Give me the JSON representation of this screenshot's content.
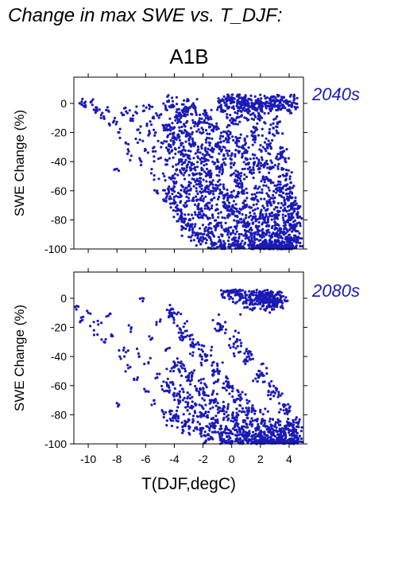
{
  "heading": "Change in max SWE vs. T_DJF:",
  "scenario": "A1B",
  "colors": {
    "points": "#1a1ab8",
    "period_label": "#1a1ab8",
    "axis": "#000000"
  },
  "chart_data": [
    {
      "type": "scatter",
      "period_label": "2040s",
      "ylabel": "SWE Change (%)",
      "xlabel": "",
      "xlim": [
        -11,
        5
      ],
      "ylim": [
        -100,
        18
      ],
      "x_ticks": [
        -10,
        -8,
        -6,
        -4,
        -2,
        0,
        2,
        4
      ],
      "y_ticks": [
        0,
        -20,
        -40,
        -60,
        -80,
        -100
      ],
      "x_tick_labels_shown": false,
      "points": [
        [
          -10.6,
          0
        ],
        [
          -10.3,
          -2
        ],
        [
          -10.2,
          1
        ],
        [
          -9.8,
          1
        ],
        [
          -9.5,
          -5
        ],
        [
          -9.4,
          -3
        ],
        [
          -9.1,
          -8
        ],
        [
          -8.9,
          -10
        ],
        [
          -8.6,
          -5
        ],
        [
          -8.5,
          -15
        ],
        [
          -8.2,
          -12
        ],
        [
          -8.0,
          -45
        ],
        [
          -7.9,
          -20
        ],
        [
          -7.6,
          -8
        ],
        [
          -7.4,
          -3
        ],
        [
          -7.2,
          -28
        ],
        [
          -7.0,
          -36
        ],
        [
          -6.9,
          -12
        ],
        [
          -6.7,
          -6
        ],
        [
          -6.5,
          -18
        ],
        [
          -6.4,
          -25
        ],
        [
          -6.3,
          -40
        ],
        [
          -6.1,
          -5
        ],
        [
          -6.0,
          -32
        ],
        [
          -5.9,
          -14
        ],
        [
          -5.8,
          -22
        ],
        [
          -5.7,
          -2
        ],
        [
          -5.6,
          -48
        ],
        [
          -5.5,
          -10
        ],
        [
          -5.4,
          -30
        ],
        [
          -5.3,
          -20
        ],
        [
          -5.2,
          -60
        ],
        [
          -5.1,
          -38
        ],
        [
          -5.0,
          -8
        ],
        [
          -4.9,
          -27
        ],
        [
          -4.8,
          -15
        ],
        [
          -4.7,
          -50
        ],
        [
          -4.6,
          -3
        ],
        [
          -4.5,
          -42
        ],
        [
          -4.4,
          -18
        ],
        [
          -4.3,
          -64
        ],
        [
          -4.2,
          -33
        ],
        [
          -4.1,
          -1
        ],
        [
          -4.0,
          -55
        ],
        [
          -3.9,
          -24
        ],
        [
          -3.8,
          -70
        ],
        [
          -3.7,
          -12
        ],
        [
          -3.6,
          -46
        ],
        [
          -3.5,
          -80
        ],
        [
          -3.4,
          -6
        ],
        [
          -3.3,
          -36
        ],
        [
          -3.2,
          -58
        ],
        [
          -3.1,
          -20
        ],
        [
          -3.0,
          -84
        ],
        [
          -2.9,
          -44
        ],
        [
          -2.8,
          -2
        ],
        [
          -2.7,
          -66
        ],
        [
          -2.6,
          -28
        ],
        [
          -2.5,
          -90
        ],
        [
          -2.4,
          -52
        ],
        [
          -2.3,
          -14
        ],
        [
          -2.2,
          -76
        ],
        [
          -2.1,
          -40
        ],
        [
          -2.0,
          -92
        ],
        [
          -1.9,
          -60
        ],
        [
          -1.8,
          -8
        ],
        [
          -1.7,
          -34
        ],
        [
          -1.6,
          -86
        ],
        [
          -1.5,
          -48
        ],
        [
          -1.4,
          -72
        ],
        [
          -1.3,
          -18
        ],
        [
          -1.2,
          -96
        ],
        [
          -1.1,
          -56
        ],
        [
          -1.0,
          -30
        ],
        [
          -0.9,
          -82
        ],
        [
          -0.8,
          -44
        ],
        [
          -0.7,
          -4
        ],
        [
          -0.6,
          -68
        ],
        [
          -0.5,
          -98
        ],
        [
          -0.4,
          -24
        ],
        [
          -0.3,
          -62
        ],
        [
          -0.2,
          -88
        ],
        [
          -0.1,
          -38
        ],
        [
          0.0,
          -74
        ],
        [
          0.1,
          -12
        ],
        [
          0.2,
          -94
        ],
        [
          0.3,
          -50
        ],
        [
          0.4,
          -78
        ],
        [
          0.5,
          -26
        ],
        [
          0.6,
          -99
        ],
        [
          0.7,
          -58
        ],
        [
          0.8,
          -84
        ],
        [
          0.9,
          -34
        ],
        [
          1.0,
          -70
        ],
        [
          1.1,
          -6
        ],
        [
          1.2,
          -92
        ],
        [
          1.3,
          -46
        ],
        [
          1.4,
          -80
        ],
        [
          1.5,
          -20
        ],
        [
          1.6,
          -99
        ],
        [
          1.7,
          -64
        ],
        [
          1.8,
          -88
        ],
        [
          1.9,
          -40
        ],
        [
          2.0,
          -76
        ],
        [
          2.1,
          -10
        ],
        [
          2.2,
          -96
        ],
        [
          2.3,
          -54
        ],
        [
          2.4,
          -82
        ],
        [
          2.5,
          -30
        ],
        [
          2.6,
          -99
        ],
        [
          2.7,
          -68
        ],
        [
          2.8,
          -90
        ],
        [
          2.9,
          -44
        ],
        [
          3.0,
          -78
        ],
        [
          3.1,
          -16
        ],
        [
          3.2,
          -94
        ],
        [
          3.3,
          -58
        ],
        [
          3.4,
          -86
        ],
        [
          3.5,
          -36
        ],
        [
          3.6,
          -98
        ],
        [
          3.7,
          -72
        ],
        [
          3.8,
          -52
        ],
        [
          3.9,
          -88
        ],
        [
          4.0,
          -62
        ],
        [
          4.1,
          -80
        ],
        [
          4.2,
          -96
        ],
        [
          4.3,
          -70
        ],
        [
          4.4,
          -84
        ],
        [
          4.5,
          -92
        ],
        [
          4.6,
          -76
        ],
        [
          1.0,
          0
        ],
        [
          1.4,
          0
        ],
        [
          1.8,
          0
        ],
        [
          2.2,
          0
        ],
        [
          2.6,
          0
        ],
        [
          3.0,
          0
        ],
        [
          3.4,
          0
        ],
        [
          3.8,
          0
        ],
        [
          4.2,
          0
        ],
        [
          0.4,
          2
        ],
        [
          0.0,
          4
        ],
        [
          -0.4,
          3
        ],
        [
          0.8,
          1
        ],
        [
          2.0,
          -100
        ],
        [
          2.6,
          -100
        ],
        [
          3.2,
          -100
        ],
        [
          3.8,
          -100
        ],
        [
          2.9,
          -100
        ],
        [
          3.5,
          -100
        ],
        [
          4.0,
          -99
        ]
      ]
    },
    {
      "type": "scatter",
      "period_label": "2080s",
      "ylabel": "SWE Change (%)",
      "xlabel": "T(DJF,degC)",
      "xlim": [
        -11,
        5
      ],
      "ylim": [
        -100,
        18
      ],
      "x_ticks": [
        -10,
        -8,
        -6,
        -4,
        -2,
        0,
        2,
        4
      ],
      "y_ticks": [
        0,
        -20,
        -40,
        -60,
        -80,
        -100
      ],
      "x_tick_labels_shown": true,
      "points": [
        [
          -10.9,
          -6
        ],
        [
          -10.4,
          -15
        ],
        [
          -10.0,
          -10
        ],
        [
          -9.6,
          -22
        ],
        [
          -9.3,
          -18
        ],
        [
          -8.9,
          -30
        ],
        [
          -8.6,
          -12
        ],
        [
          -8.3,
          -26
        ],
        [
          -8.0,
          -72
        ],
        [
          -7.8,
          -40
        ],
        [
          -7.5,
          -34
        ],
        [
          -7.2,
          -48
        ],
        [
          -7.0,
          -20
        ],
        [
          -6.8,
          -56
        ],
        [
          -6.5,
          -38
        ],
        [
          -6.2,
          -2
        ],
        [
          -6.0,
          -64
        ],
        [
          -5.8,
          -44
        ],
        [
          -5.6,
          -28
        ],
        [
          -5.4,
          -70
        ],
        [
          -5.2,
          -52
        ],
        [
          -5.0,
          -16
        ],
        [
          -4.8,
          -78
        ],
        [
          -4.6,
          -36
        ],
        [
          -4.4,
          -60
        ],
        [
          -4.2,
          -10
        ],
        [
          -4.0,
          -82
        ],
        [
          -3.8,
          -46
        ],
        [
          -3.6,
          -68
        ],
        [
          -3.4,
          -24
        ],
        [
          -3.2,
          -86
        ],
        [
          -3.0,
          -54
        ],
        [
          -2.8,
          -74
        ],
        [
          -2.6,
          -32
        ],
        [
          -2.4,
          -90
        ],
        [
          -2.2,
          -62
        ],
        [
          -2.0,
          -80
        ],
        [
          -1.8,
          -40
        ],
        [
          -1.6,
          -94
        ],
        [
          -1.4,
          -70
        ],
        [
          -1.2,
          -86
        ],
        [
          -1.0,
          -50
        ],
        [
          -0.8,
          -96
        ],
        [
          -0.6,
          -76
        ],
        [
          -0.4,
          -88
        ],
        [
          -0.2,
          -60
        ],
        [
          0.0,
          -98
        ],
        [
          0.2,
          -82
        ],
        [
          0.4,
          -92
        ],
        [
          0.6,
          -70
        ],
        [
          0.8,
          -99
        ],
        [
          1.0,
          -86
        ],
        [
          1.2,
          -94
        ],
        [
          1.4,
          -78
        ],
        [
          1.6,
          -99
        ],
        [
          1.8,
          -90
        ],
        [
          2.0,
          -96
        ],
        [
          2.2,
          -84
        ],
        [
          2.4,
          -99
        ],
        [
          2.6,
          -92
        ],
        [
          2.8,
          -98
        ],
        [
          3.0,
          -88
        ],
        [
          3.2,
          -99
        ],
        [
          3.4,
          -94
        ],
        [
          3.6,
          -98
        ],
        [
          3.8,
          -90
        ],
        [
          4.0,
          -99
        ],
        [
          4.2,
          -94
        ],
        [
          4.4,
          -98
        ],
        [
          4.6,
          -88
        ],
        [
          -0.3,
          5
        ],
        [
          0.1,
          4
        ],
        [
          0.5,
          3
        ],
        [
          1.0,
          -2
        ],
        [
          1.4,
          -1
        ],
        [
          1.8,
          0
        ],
        [
          2.2,
          0
        ],
        [
          2.6,
          0
        ],
        [
          3.0,
          0
        ],
        [
          3.4,
          0
        ],
        [
          2.0,
          -1
        ],
        [
          2.4,
          -2
        ],
        [
          2.8,
          -1
        ],
        [
          3.2,
          -2
        ],
        [
          -0.8,
          -20
        ],
        [
          0.3,
          -30
        ],
        [
          1.2,
          -40
        ],
        [
          2.0,
          -52
        ],
        [
          2.9,
          -64
        ],
        [
          3.8,
          -76
        ]
      ]
    }
  ]
}
